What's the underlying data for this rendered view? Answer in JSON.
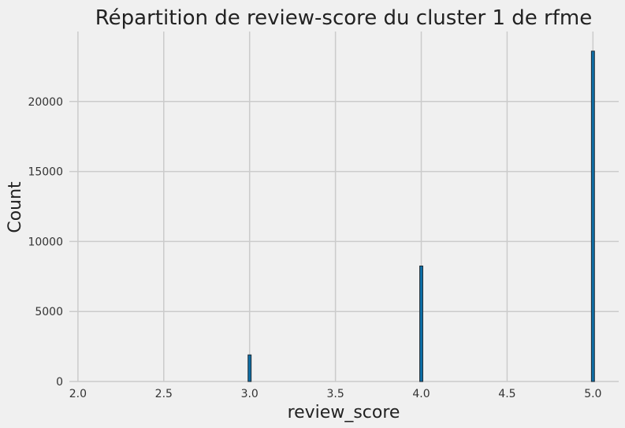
{
  "chart_data": {
    "type": "bar",
    "title": "Répartition de review-score du cluster 1 de rfme",
    "xlabel": "review_score",
    "ylabel": "Count",
    "x": [
      3.0,
      4.0,
      5.0
    ],
    "values": [
      1900,
      8250,
      23600
    ],
    "xlim": [
      1.95,
      5.15
    ],
    "ylim": [
      0,
      25000
    ],
    "x_ticks": [
      "2.0",
      "2.5",
      "3.0",
      "3.5",
      "4.0",
      "4.5",
      "5.0"
    ],
    "y_ticks": [
      "0",
      "5000",
      "10000",
      "15000",
      "20000"
    ],
    "grid": true,
    "bar_color": "#0e6ea6",
    "edge_color": "#1e2b35",
    "background": "#f0f0f0",
    "grid_color": "#cbcbcb"
  }
}
